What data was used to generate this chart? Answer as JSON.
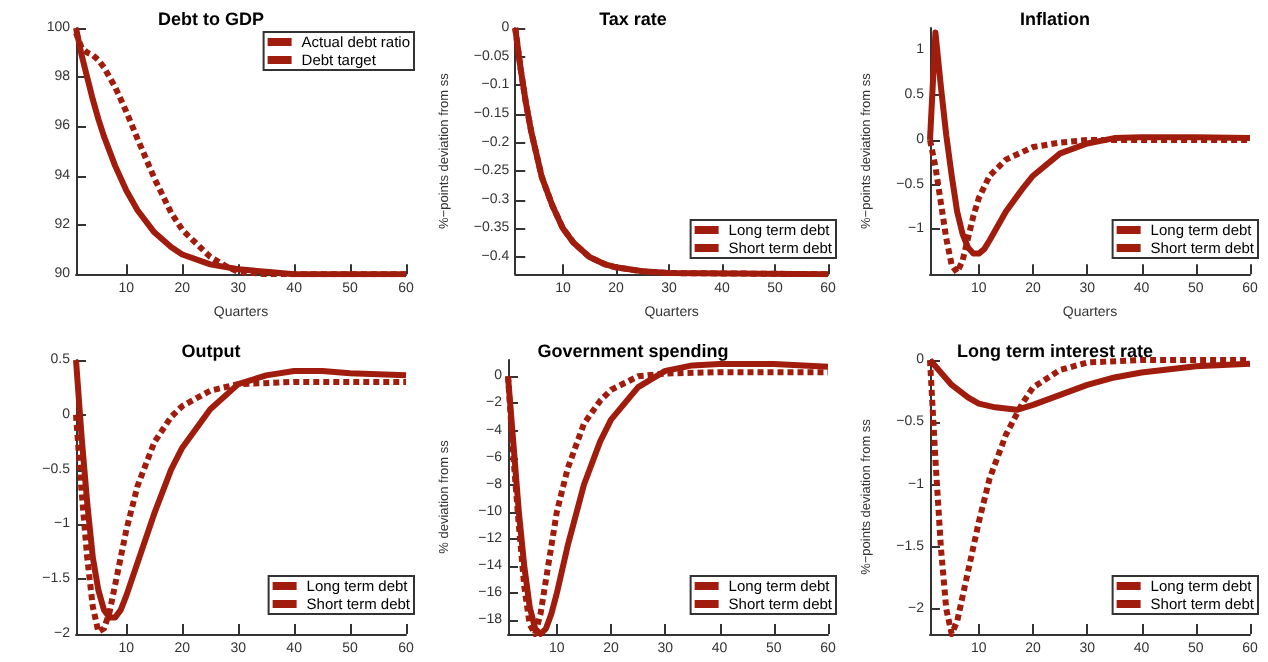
{
  "chart_data": [
    {
      "type": "line",
      "title": "Debt to GDP",
      "xlabel": "Quarters",
      "xlim": [
        1,
        60
      ],
      "xticks": [
        10,
        20,
        30,
        40,
        50,
        60
      ],
      "ylim": [
        90,
        100
      ],
      "yticks": [
        90,
        92,
        94,
        96,
        98,
        100
      ],
      "grid": false,
      "legend": "top right",
      "marker": "none",
      "series": [
        {
          "name": "Actual debt ratio",
          "color": "#a01c0c",
          "line_style": "dashed",
          "x": [
            1,
            2,
            3,
            4,
            5,
            6,
            8,
            10,
            12,
            15,
            18,
            20,
            25,
            28,
            30,
            35,
            60
          ],
          "values": [
            99.8,
            99.2,
            99,
            98.9,
            98.7,
            98.4,
            97.6,
            96.6,
            95.5,
            93.9,
            92.5,
            91.8,
            90.7,
            90.3,
            90.1,
            90,
            90
          ]
        },
        {
          "name": "Debt target",
          "color": "#a01c0c",
          "line_style": "solid",
          "x": [
            1,
            2,
            3,
            4,
            5,
            6,
            8,
            10,
            12,
            15,
            18,
            20,
            25,
            30,
            35,
            40,
            60
          ],
          "values": [
            100,
            98.9,
            98,
            97.1,
            96.3,
            95.6,
            94.4,
            93.4,
            92.6,
            91.7,
            91.1,
            90.8,
            90.4,
            90.2,
            90.1,
            90,
            90
          ]
        }
      ]
    },
    {
      "type": "line",
      "title": "Tax rate",
      "xlabel": "Quarters",
      "ylabel": "%−points deviation from ss",
      "xlim": [
        1,
        60
      ],
      "xticks": [
        10,
        20,
        30,
        40,
        50,
        60
      ],
      "ylim": [
        -0.43,
        0
      ],
      "yticks": [
        -0.4,
        -0.35,
        -0.3,
        -0.25,
        -0.2,
        -0.15,
        -0.1,
        -0.05,
        0
      ],
      "grid": false,
      "legend": "bottom right",
      "marker": "none",
      "series": [
        {
          "name": "Long term debt",
          "color": "#a01c0c",
          "line_style": "solid",
          "x": [
            1,
            2,
            3,
            4,
            5,
            6,
            8,
            10,
            12,
            15,
            18,
            20,
            25,
            30,
            60
          ],
          "values": [
            0,
            -0.07,
            -0.13,
            -0.18,
            -0.22,
            -0.26,
            -0.31,
            -0.35,
            -0.375,
            -0.4,
            -0.413,
            -0.418,
            -0.425,
            -0.428,
            -0.43
          ]
        },
        {
          "name": "Short term debt",
          "color": "#a01c0c",
          "line_style": "dashed",
          "x": [
            1,
            2,
            3,
            4,
            5,
            6,
            8,
            10,
            12,
            15,
            18,
            20,
            25,
            30,
            60
          ],
          "values": [
            0,
            -0.07,
            -0.13,
            -0.18,
            -0.22,
            -0.26,
            -0.31,
            -0.35,
            -0.375,
            -0.4,
            -0.413,
            -0.418,
            -0.425,
            -0.428,
            -0.43
          ]
        }
      ]
    },
    {
      "type": "line",
      "title": "Inflation",
      "xlabel": "Quarters",
      "ylabel": "%−points deviation from ss",
      "xlim": [
        1,
        60
      ],
      "xticks": [
        10,
        20,
        30,
        40,
        50,
        60
      ],
      "ylim": [
        -1.5,
        1.25
      ],
      "yticks": [
        -1,
        -0.5,
        0,
        0.5,
        1
      ],
      "grid": false,
      "legend": "bottom right",
      "marker": "none",
      "series": [
        {
          "name": "Long term debt",
          "color": "#a01c0c",
          "line_style": "solid",
          "x": [
            1,
            2,
            3,
            4,
            5,
            6,
            7,
            8,
            9,
            10,
            11,
            12,
            15,
            18,
            20,
            25,
            30,
            35,
            40,
            50,
            60
          ],
          "values": [
            0,
            1.2,
            0.6,
            0.05,
            -0.4,
            -0.8,
            -1.05,
            -1.2,
            -1.27,
            -1.27,
            -1.22,
            -1.12,
            -0.8,
            -0.55,
            -0.4,
            -0.15,
            -0.04,
            0.02,
            0.03,
            0.03,
            0.02
          ]
        },
        {
          "name": "Short term debt",
          "color": "#a01c0c",
          "line_style": "dashed",
          "x": [
            1,
            2,
            3,
            4,
            5,
            6,
            7,
            8,
            9,
            10,
            12,
            15,
            20,
            25,
            30,
            60
          ],
          "values": [
            0,
            -0.3,
            -0.7,
            -1.1,
            -1.4,
            -1.48,
            -1.35,
            -1.1,
            -0.85,
            -0.65,
            -0.4,
            -0.22,
            -0.08,
            -0.03,
            0,
            0
          ]
        }
      ]
    },
    {
      "type": "line",
      "title": "Output",
      "xlim": [
        1,
        60
      ],
      "xticks": [
        10,
        20,
        30,
        40,
        50,
        60
      ],
      "ylim": [
        -2,
        0.5
      ],
      "yticks": [
        -2,
        -1.5,
        -1,
        -0.5,
        0,
        0.5
      ],
      "grid": false,
      "legend": "bottom right",
      "marker": "none",
      "series": [
        {
          "name": "Long term debt",
          "color": "#a01c0c",
          "line_style": "solid",
          "x": [
            1,
            2,
            3,
            4,
            5,
            6,
            7,
            8,
            9,
            10,
            12,
            15,
            18,
            20,
            25,
            30,
            35,
            40,
            45,
            50,
            60
          ],
          "values": [
            0.5,
            -0.2,
            -0.8,
            -1.3,
            -1.6,
            -1.78,
            -1.85,
            -1.85,
            -1.78,
            -1.65,
            -1.35,
            -0.9,
            -0.5,
            -0.3,
            0.05,
            0.28,
            0.36,
            0.4,
            0.4,
            0.38,
            0.36
          ]
        },
        {
          "name": "Short term debt",
          "color": "#a01c0c",
          "line_style": "dashed",
          "x": [
            1,
            2,
            3,
            4,
            5,
            6,
            7,
            8,
            10,
            12,
            15,
            18,
            20,
            25,
            30,
            40,
            60
          ],
          "values": [
            0,
            -0.7,
            -1.3,
            -1.75,
            -1.98,
            -1.95,
            -1.8,
            -1.55,
            -1.05,
            -0.65,
            -0.25,
            -0.02,
            0.08,
            0.22,
            0.28,
            0.3,
            0.3
          ]
        }
      ]
    },
    {
      "type": "line",
      "title": "Government spending",
      "ylabel": "% deviation from ss",
      "xlim": [
        1,
        60
      ],
      "xticks": [
        10,
        20,
        30,
        40,
        50,
        60
      ],
      "ylim": [
        -19,
        1.2
      ],
      "yticks": [
        -18,
        -16,
        -14,
        -12,
        -10,
        -8,
        -6,
        -4,
        -2,
        0
      ],
      "grid": false,
      "legend": "bottom right",
      "marker": "none",
      "series": [
        {
          "name": "Long term debt",
          "color": "#a01c0c",
          "line_style": "solid",
          "x": [
            1,
            2,
            3,
            4,
            5,
            6,
            7,
            8,
            9,
            10,
            12,
            15,
            18,
            20,
            25,
            30,
            35,
            40,
            50,
            60
          ],
          "values": [
            0,
            -5,
            -10,
            -14,
            -17,
            -18.6,
            -19,
            -18.6,
            -17.5,
            -16,
            -12.5,
            -8,
            -4.8,
            -3.2,
            -0.8,
            0.4,
            0.8,
            0.9,
            0.9,
            0.7
          ]
        },
        {
          "name": "Short term debt",
          "color": "#a01c0c",
          "line_style": "dashed",
          "x": [
            1,
            2,
            3,
            4,
            5,
            6,
            7,
            8,
            10,
            12,
            15,
            18,
            20,
            25,
            30,
            40,
            60
          ],
          "values": [
            0,
            -6,
            -11,
            -15.5,
            -18.3,
            -19,
            -17.5,
            -15,
            -10,
            -6.8,
            -3.5,
            -1.8,
            -1,
            0,
            0.2,
            0.3,
            0.3
          ]
        }
      ]
    },
    {
      "type": "line",
      "title": "Long term interest rate",
      "ylabel": "%−points deviation from ss",
      "xlim": [
        1,
        60
      ],
      "xticks": [
        10,
        20,
        30,
        40,
        50,
        60
      ],
      "ylim": [
        -2.2,
        0
      ],
      "yticks": [
        -2,
        -1.5,
        -1,
        -0.5,
        0
      ],
      "grid": false,
      "legend": "bottom right",
      "marker": "none",
      "series": [
        {
          "name": "Long term debt",
          "color": "#a01c0c",
          "line_style": "solid",
          "x": [
            1,
            3,
            5,
            8,
            10,
            13,
            17,
            20,
            25,
            30,
            35,
            40,
            50,
            60
          ],
          "values": [
            0,
            -0.1,
            -0.2,
            -0.3,
            -0.35,
            -0.38,
            -0.4,
            -0.36,
            -0.28,
            -0.2,
            -0.14,
            -0.1,
            -0.05,
            -0.03
          ]
        },
        {
          "name": "Short term debt",
          "color": "#a01c0c",
          "line_style": "dashed",
          "x": [
            1,
            2,
            3,
            4,
            5,
            6,
            8,
            10,
            12,
            15,
            18,
            20,
            25,
            30,
            40,
            60
          ],
          "values": [
            0,
            -0.8,
            -1.5,
            -2,
            -2.2,
            -2.1,
            -1.7,
            -1.3,
            -0.95,
            -0.6,
            -0.35,
            -0.22,
            -0.08,
            -0.02,
            0,
            0
          ]
        }
      ]
    }
  ]
}
